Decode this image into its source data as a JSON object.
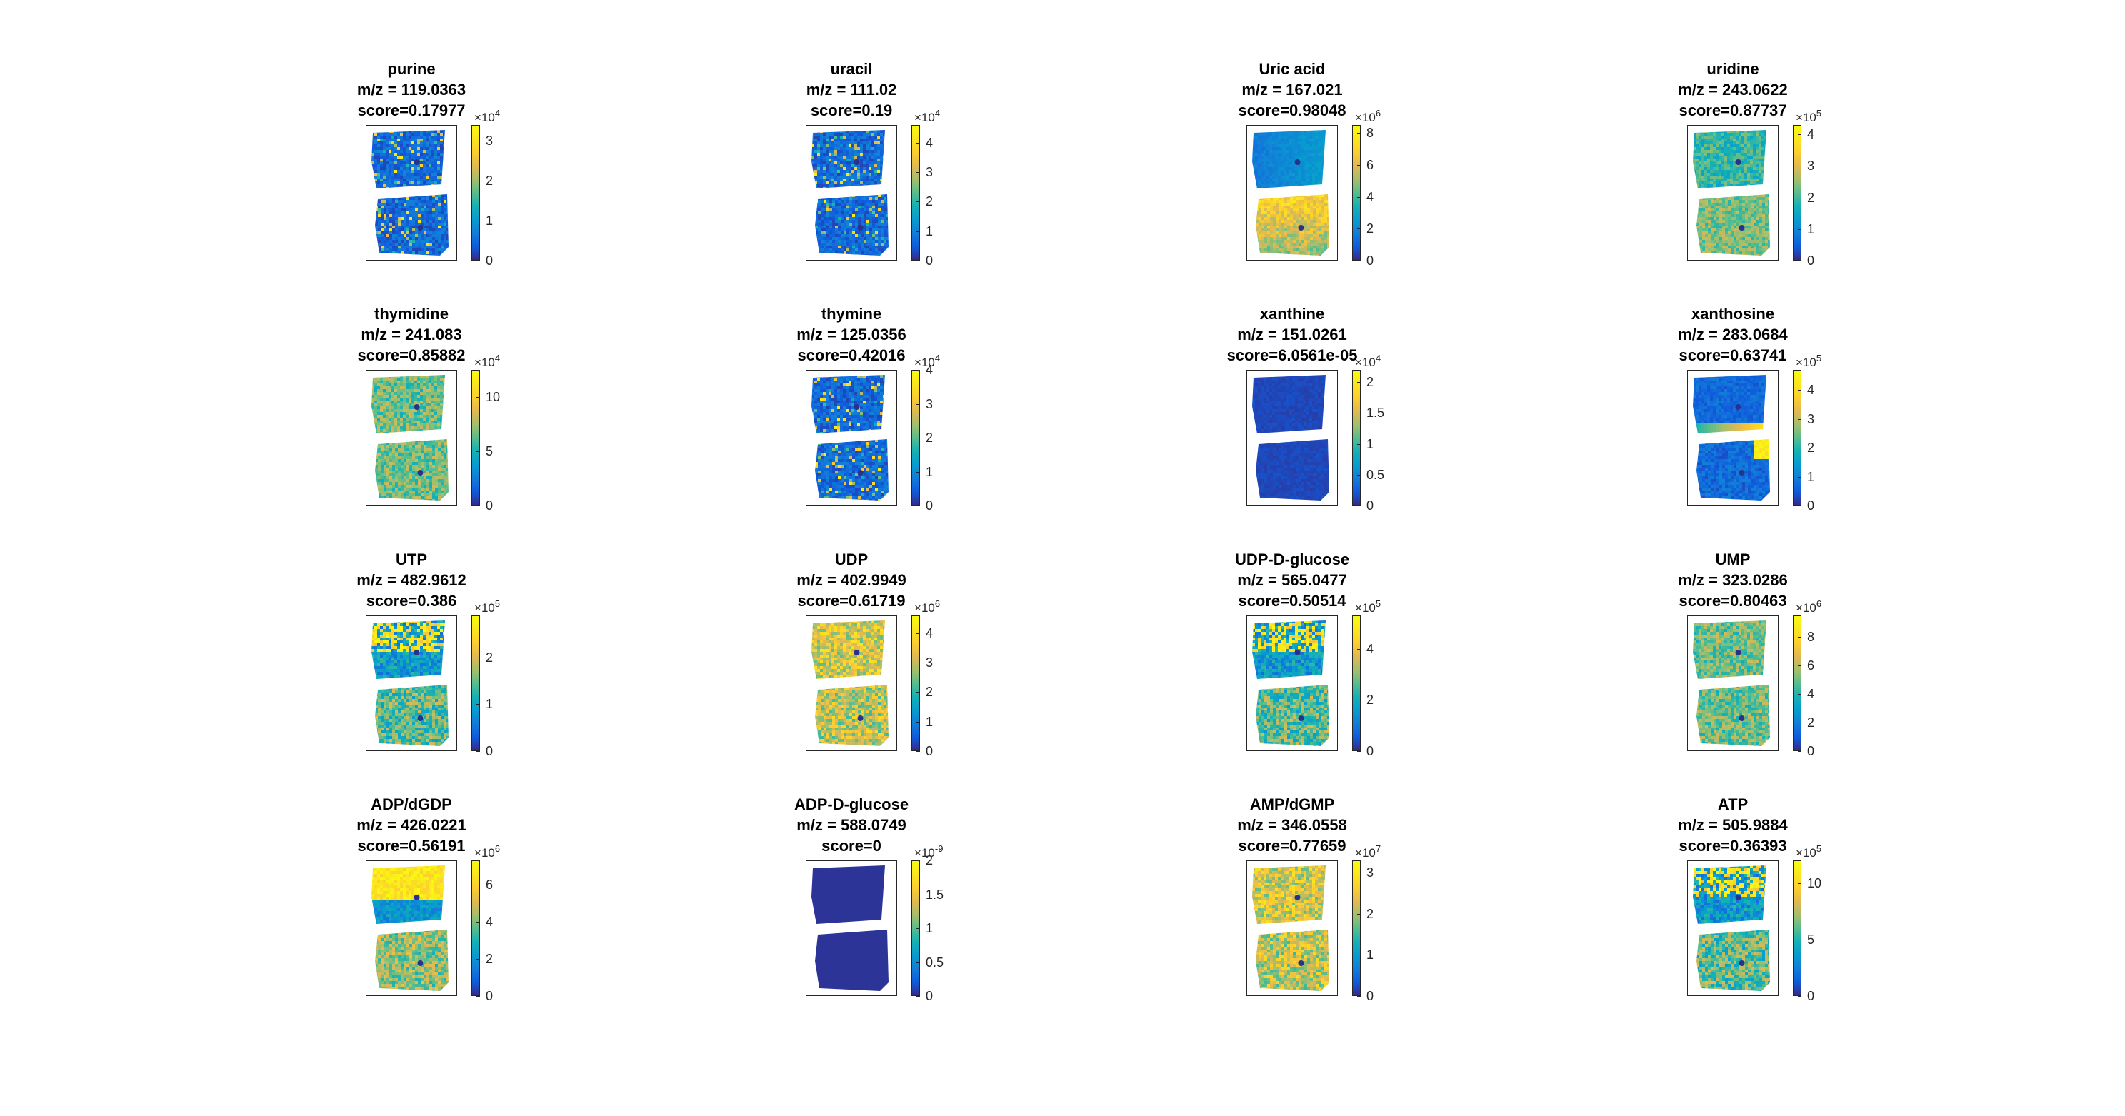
{
  "chart_data": [
    {
      "type": "heatmap",
      "title": [
        "purine",
        "m/z = 119.0363",
        "score=0.17977"
      ],
      "colorbar_ticks": [
        "0",
        "1",
        "2",
        "3"
      ],
      "colorbar_max": 3.4,
      "multiplier": "10",
      "exponent": "4",
      "pattern": "noise-low"
    },
    {
      "type": "heatmap",
      "title": [
        "uracil",
        "m/z = 111.02",
        "score=0.19"
      ],
      "colorbar_ticks": [
        "0",
        "1",
        "2",
        "3",
        "4"
      ],
      "colorbar_max": 4.6,
      "multiplier": "10",
      "exponent": "4",
      "pattern": "noise-low"
    },
    {
      "type": "heatmap",
      "title": [
        "Uric acid",
        "m/z = 167.021",
        "score=0.98048"
      ],
      "colorbar_ticks": [
        "0",
        "2",
        "4",
        "6",
        "8"
      ],
      "colorbar_max": 8.5,
      "multiplier": "10",
      "exponent": "6",
      "pattern": "top-blue-bottom-green"
    },
    {
      "type": "heatmap",
      "title": [
        "uridine",
        "m/z = 243.0622",
        "score=0.87737"
      ],
      "colorbar_ticks": [
        "0",
        "1",
        "2",
        "3",
        "4"
      ],
      "colorbar_max": 4.3,
      "multiplier": "10",
      "exponent": "5",
      "pattern": "mid-cyan"
    },
    {
      "type": "heatmap",
      "title": [
        "thymidine",
        "m/z = 241.083",
        "score=0.85882"
      ],
      "colorbar_ticks": [
        "0",
        "5",
        "10"
      ],
      "colorbar_max": 12.5,
      "multiplier": "10",
      "exponent": "4",
      "pattern": "mid-green"
    },
    {
      "type": "heatmap",
      "title": [
        "thymine",
        "m/z = 125.0356",
        "score=0.42016"
      ],
      "colorbar_ticks": [
        "0",
        "1",
        "2",
        "3",
        "4"
      ],
      "colorbar_max": 4.0,
      "multiplier": "10",
      "exponent": "4",
      "pattern": "noise-low"
    },
    {
      "type": "heatmap",
      "title": [
        "xanthine",
        "m/z = 151.0261",
        "score=6.0561e-05"
      ],
      "colorbar_ticks": [
        "0",
        "0.5",
        "1",
        "1.5",
        "2"
      ],
      "colorbar_max": 2.2,
      "multiplier": "10",
      "exponent": "4",
      "pattern": "flat-low"
    },
    {
      "type": "heatmap",
      "title": [
        "xanthosine",
        "m/z = 283.0684",
        "score=0.63741"
      ],
      "colorbar_ticks": [
        "0",
        "1",
        "2",
        "3",
        "4"
      ],
      "colorbar_max": 4.7,
      "multiplier": "10",
      "exponent": "5",
      "pattern": "top-blue-edge-yellow"
    },
    {
      "type": "heatmap",
      "title": [
        "UTP",
        "m/z = 482.9612",
        "score=0.386"
      ],
      "colorbar_ticks": [
        "0",
        "1",
        "2"
      ],
      "colorbar_max": 2.9,
      "multiplier": "10",
      "exponent": "5",
      "pattern": "mixed-high"
    },
    {
      "type": "heatmap",
      "title": [
        "UDP",
        "m/z = 402.9949",
        "score=0.61719"
      ],
      "colorbar_ticks": [
        "0",
        "1",
        "2",
        "3",
        "4"
      ],
      "colorbar_max": 4.6,
      "multiplier": "10",
      "exponent": "6",
      "pattern": "high-green"
    },
    {
      "type": "heatmap",
      "title": [
        "UDP-D-glucose",
        "m/z = 565.0477",
        "score=0.50514"
      ],
      "colorbar_ticks": [
        "0",
        "2",
        "4"
      ],
      "colorbar_max": 5.3,
      "multiplier": "10",
      "exponent": "5",
      "pattern": "mixed-high"
    },
    {
      "type": "heatmap",
      "title": [
        "UMP",
        "m/z = 323.0286",
        "score=0.80463"
      ],
      "colorbar_ticks": [
        "0",
        "2",
        "4",
        "6",
        "8"
      ],
      "colorbar_max": 9.5,
      "multiplier": "10",
      "exponent": "6",
      "pattern": "mid-green"
    },
    {
      "type": "heatmap",
      "title": [
        "ADP/dGDP",
        "m/z = 426.0221",
        "score=0.56191"
      ],
      "colorbar_ticks": [
        "0",
        "2",
        "4",
        "6"
      ],
      "colorbar_max": 7.3,
      "multiplier": "10",
      "exponent": "6",
      "pattern": "top-yellow-band"
    },
    {
      "type": "heatmap",
      "title": [
        "ADP-D-glucose",
        "m/z = 588.0749",
        "score=0"
      ],
      "colorbar_ticks": [
        "0",
        "0.5",
        "1",
        "1.5",
        "2"
      ],
      "colorbar_max": 2.0,
      "multiplier": "10",
      "exponent": "-9",
      "pattern": "flat-zero"
    },
    {
      "type": "heatmap",
      "title": [
        "AMP/dGMP",
        "m/z = 346.0558",
        "score=0.77659"
      ],
      "colorbar_ticks": [
        "0",
        "1",
        "2",
        "3"
      ],
      "colorbar_max": 3.3,
      "multiplier": "10",
      "exponent": "7",
      "pattern": "high-green"
    },
    {
      "type": "heatmap",
      "title": [
        "ATP",
        "m/z = 505.9884",
        "score=0.36393"
      ],
      "colorbar_ticks": [
        "0",
        "5",
        "10"
      ],
      "colorbar_max": 12.0,
      "multiplier": "10",
      "exponent": "5",
      "pattern": "mixed-high"
    }
  ]
}
